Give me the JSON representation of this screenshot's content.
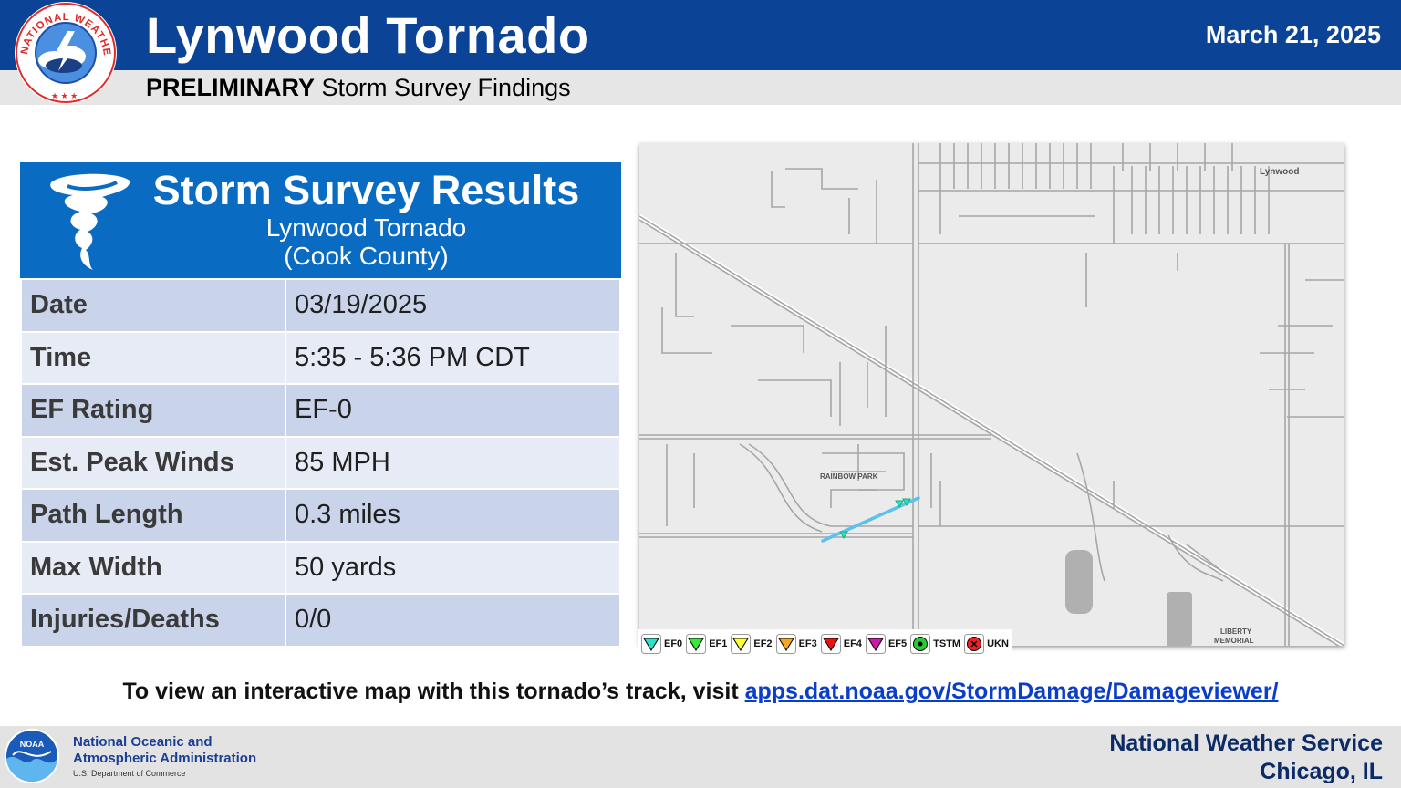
{
  "header": {
    "title": "Lynwood Tornado",
    "date": "March 21, 2025",
    "subtitle_bold": "PRELIMINARY",
    "subtitle_rest": " Storm Survey Findings",
    "logo_text": "NATIONAL WEATHER SERVICE"
  },
  "panel": {
    "title": "Storm Survey Results",
    "line1": "Lynwood Tornado",
    "line2": "(Cook County)",
    "rows": [
      {
        "label": "Date",
        "value": "03/19/2025"
      },
      {
        "label": "Time",
        "value": "5:35 - 5:36 PM CDT"
      },
      {
        "label": "EF Rating",
        "value": "EF-0"
      },
      {
        "label": "Est. Peak Winds",
        "value": "85 MPH"
      },
      {
        "label": "Path Length",
        "value": "0.3 miles"
      },
      {
        "label": "Max Width",
        "value": "50 yards"
      },
      {
        "label": "Injuries/Deaths",
        "value": "0/0"
      }
    ]
  },
  "map": {
    "labels": {
      "lynwood": "Lynwood",
      "rainbow_park": "RAINBOW PARK",
      "liberty1": "LIBERTY",
      "liberty2": "MEMORIAL"
    },
    "track_color": "#5bc1ef",
    "legend": [
      {
        "label": "EF0",
        "color": "#2de0c8",
        "shape": "triangle"
      },
      {
        "label": "EF1",
        "color": "#39e639",
        "shape": "triangle"
      },
      {
        "label": "EF2",
        "color": "#ffff33",
        "shape": "triangle"
      },
      {
        "label": "EF3",
        "color": "#f5a623",
        "shape": "triangle"
      },
      {
        "label": "EF4",
        "color": "#ee1111",
        "shape": "triangle"
      },
      {
        "label": "EF5",
        "color": "#cc1aa8",
        "shape": "triangle"
      },
      {
        "label": "TSTM",
        "color": "#22cc33",
        "shape": "circle"
      },
      {
        "label": "UKN",
        "color": "#ee2222",
        "shape": "circle-x"
      }
    ]
  },
  "visit": {
    "text": "To view an interactive map with this tornado’s track, visit ",
    "link": "apps.dat.noaa.gov/StormDamage/Damageviewer/"
  },
  "footer": {
    "noaa_line1": "National Oceanic and",
    "noaa_line2": "Atmospheric Administration",
    "noaa_dept": "U.S. Department of Commerce",
    "noaa_logo_text": "NOAA",
    "office_line1": "National Weather Service",
    "office_line2": "Chicago, IL"
  }
}
